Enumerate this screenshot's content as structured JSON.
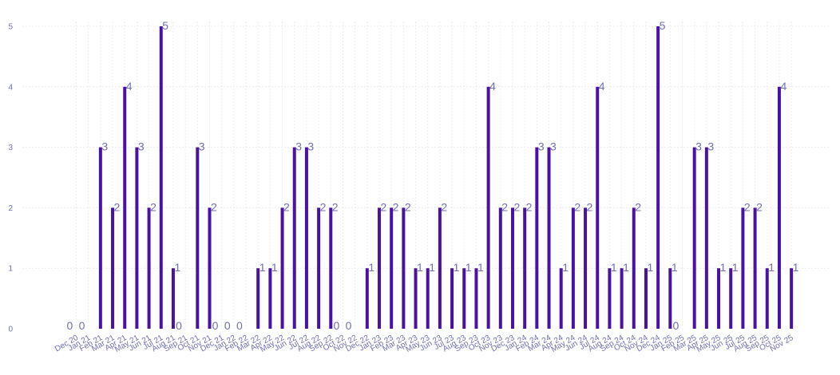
{
  "chart_data": {
    "type": "bar",
    "title": "",
    "xlabel": "",
    "ylabel": "",
    "ylim": [
      0,
      5
    ],
    "yticks": [
      "0",
      "1",
      "2",
      "3",
      "4",
      "5"
    ],
    "grid": true,
    "bar_color": "#4a12a3",
    "categories": [
      "Dec 20",
      "Jan 21",
      "Feb 21",
      "Mar 21",
      "Apr 21",
      "May 21",
      "Jun 21",
      "Jul 21",
      "Aug 21",
      "Sep 21",
      "Oct 21",
      "Nov 21",
      "Dec 21",
      "Jan 22",
      "Feb 22",
      "Mar 22",
      "Apr 22",
      "May 22",
      "Jun 22",
      "Jul 22",
      "Aug 22",
      "Sep 22",
      "Oct 22",
      "Nov 22",
      "Dec 22",
      "Jan 23",
      "Feb 23",
      "Mar 23",
      "Apr 23",
      "May 23",
      "Jun 23",
      "Jul 23",
      "Aug 23",
      "Sep 23",
      "Oct 23",
      "Nov 23",
      "Dec 23",
      "Jan 24",
      "Feb 24",
      "Mar 24",
      "Apr 24",
      "May 24",
      "Jun 24",
      "Jul 24",
      "Aug 24",
      "Sep 24",
      "Oct 24",
      "Nov 24",
      "Dec 24",
      "Jan 25",
      "Feb 25",
      "Mar 25",
      "Apr 25",
      "May 25",
      "Jun 25",
      "Jul 25",
      "Aug 25",
      "Sep 25",
      "Oct 25",
      "Nov 25"
    ],
    "values": [
      0,
      0,
      3,
      2,
      4,
      3,
      2,
      5,
      1,
      0,
      3,
      2,
      0,
      0,
      0,
      1,
      1,
      2,
      3,
      3,
      2,
      2,
      0,
      0,
      1,
      2,
      2,
      2,
      1,
      1,
      2,
      1,
      1,
      1,
      4,
      2,
      2,
      2,
      3,
      3,
      1,
      2,
      2,
      4,
      1,
      1,
      2,
      1,
      5,
      1,
      0,
      3,
      3,
      1,
      1,
      2,
      2,
      1,
      4,
      1
    ]
  }
}
